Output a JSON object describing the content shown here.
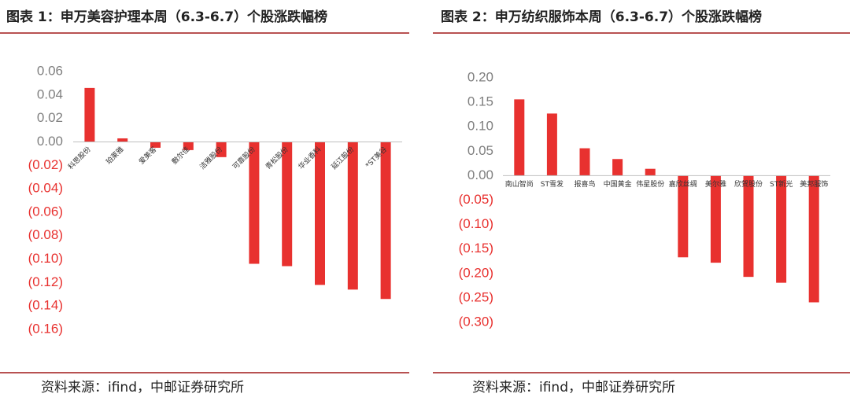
{
  "chart_data": [
    {
      "type": "bar",
      "title": "图表 1：申万美容护理本周（6.3-6.7）个股涨跌幅榜",
      "source": "资料来源：ifind，中邮证券研究所",
      "categories": [
        "科思股份",
        "珀莱雅",
        "爱美客",
        "敷尔佳",
        "洁雅股份",
        "可靠股份",
        "青松股份",
        "华业香料",
        "延江股份",
        "*ST美谷"
      ],
      "values": [
        0.046,
        0.003,
        -0.005,
        -0.007,
        -0.013,
        -0.104,
        -0.106,
        -0.122,
        -0.126,
        -0.134
      ],
      "color": "#e8312f",
      "ylim": [
        -0.16,
        0.06
      ],
      "yticks": [
        0.06,
        0.04,
        0.02,
        {
          "value": 0,
          "label": "0.00"
        },
        {
          "value": -0.02,
          "label": "(0.02)"
        },
        {
          "value": -0.04,
          "label": "(0.04)"
        },
        {
          "value": -0.06,
          "label": "(0.06)"
        },
        {
          "value": -0.08,
          "label": "(0.08)"
        },
        {
          "value": -0.1,
          "label": "(0.10)"
        },
        {
          "value": -0.12,
          "label": "(0.12)"
        },
        {
          "value": -0.14,
          "label": "(0.14)"
        },
        {
          "value": -0.16,
          "label": "(0.16)"
        }
      ],
      "category_label_rotation": -45
    },
    {
      "type": "bar",
      "title": "图表 2：申万纺织服饰本周（6.3-6.7）个股涨跌幅榜",
      "source": "资料来源：ifind，中邮证券研究所",
      "categories": [
        "南山智尚",
        "ST雪发",
        "报喜鸟",
        "中国黄金",
        "伟星股份",
        "嘉欣丝绸",
        "美尔雅",
        "欣贺股份",
        "ST新光",
        "美邦服饰"
      ],
      "values": [
        0.156,
        0.127,
        0.056,
        0.034,
        0.014,
        -0.167,
        -0.178,
        -0.207,
        -0.219,
        -0.259
      ],
      "color": "#e8312f",
      "ylim": [
        -0.3,
        0.2
      ],
      "yticks": [
        {
          "value": 0.2,
          "label": "0.20"
        },
        0.15,
        {
          "value": 0.1,
          "label": "0.10"
        },
        0.05,
        {
          "value": 0,
          "label": "0.00"
        },
        {
          "value": -0.05,
          "label": "(0.05)"
        },
        {
          "value": -0.1,
          "label": "(0.10)"
        },
        {
          "value": -0.15,
          "label": "(0.15)"
        },
        {
          "value": -0.2,
          "label": "(0.20)"
        },
        {
          "value": -0.25,
          "label": "(0.25)"
        },
        {
          "value": -0.3,
          "label": "(0.30)"
        }
      ],
      "category_label_rotation": 0
    }
  ]
}
